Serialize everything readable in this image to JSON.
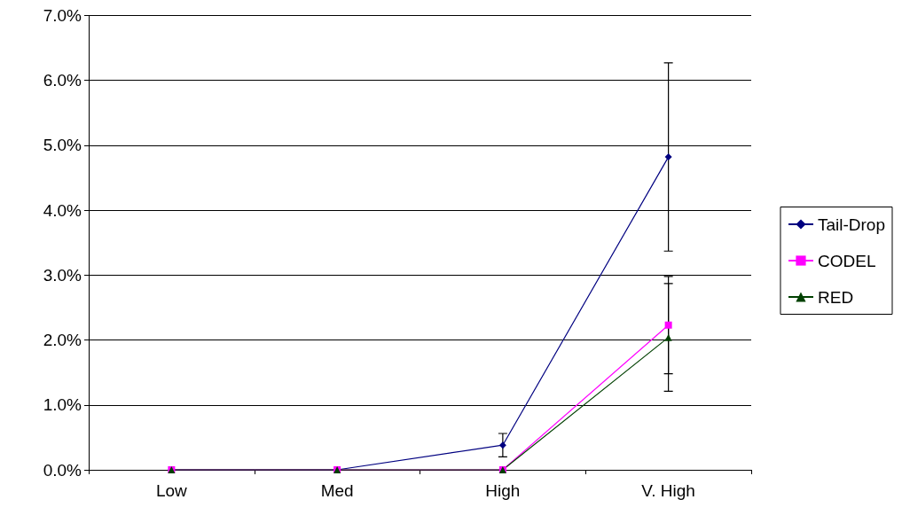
{
  "chart_data": {
    "type": "line",
    "categories": [
      "Low",
      "Med",
      "High",
      "V. High"
    ],
    "series": [
      {
        "name": "Tail-Drop",
        "color": "#000080",
        "marker": "diamond",
        "values": [
          0,
          0,
          0.38,
          4.82
        ],
        "errors": [
          null,
          null,
          0.18,
          1.45
        ]
      },
      {
        "name": "CODEL",
        "color": "#ff00ff",
        "marker": "square",
        "values": [
          0,
          0,
          0,
          2.23
        ],
        "errors": [
          null,
          null,
          null,
          0.75
        ]
      },
      {
        "name": "RED",
        "color": "#004000",
        "marker": "triangle",
        "values": [
          0,
          0,
          0,
          2.04
        ],
        "errors": [
          null,
          null,
          null,
          0.83
        ]
      }
    ],
    "ylim": [
      0,
      7
    ],
    "yticks": [
      {
        "value": 0,
        "label": "0.0%"
      },
      {
        "value": 1,
        "label": "1.0%"
      },
      {
        "value": 2,
        "label": "2.0%"
      },
      {
        "value": 3,
        "label": "3.0%"
      },
      {
        "value": 4,
        "label": "4.0%"
      },
      {
        "value": 5,
        "label": "5.0%"
      },
      {
        "value": 6,
        "label": "6.0%"
      },
      {
        "value": 7,
        "label": "7.0%"
      }
    ],
    "grid": "y",
    "legend": "right"
  }
}
